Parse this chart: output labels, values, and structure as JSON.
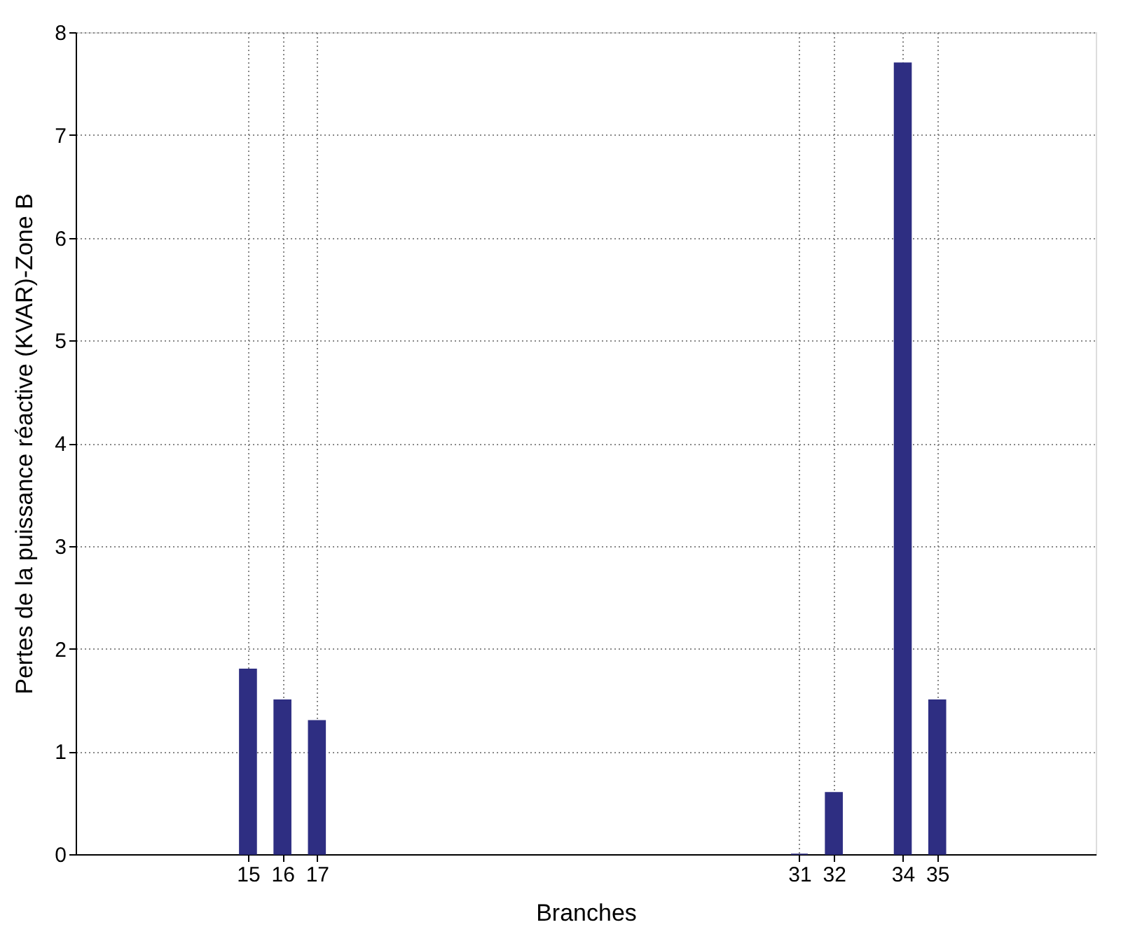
{
  "chart_data": {
    "type": "bar",
    "xlabel": "Branches",
    "ylabel": "Pertes de la puissance réactive (KVAR)-Zone B",
    "x": [
      15,
      16,
      17,
      31,
      32,
      34,
      35
    ],
    "series": [
      {
        "color": "#2e2e82",
        "values": [
          1.8,
          1.5,
          1.3,
          0,
          0.6,
          7.7,
          1.5
        ]
      }
    ],
    "xlim": [
      10,
      39.6
    ],
    "xticks": [
      15,
      16,
      17,
      31,
      32,
      34,
      35
    ],
    "ylim": [
      0,
      8
    ],
    "yticks": [
      0,
      1,
      2,
      3,
      4,
      5,
      6,
      7,
      8
    ],
    "grid": true
  }
}
